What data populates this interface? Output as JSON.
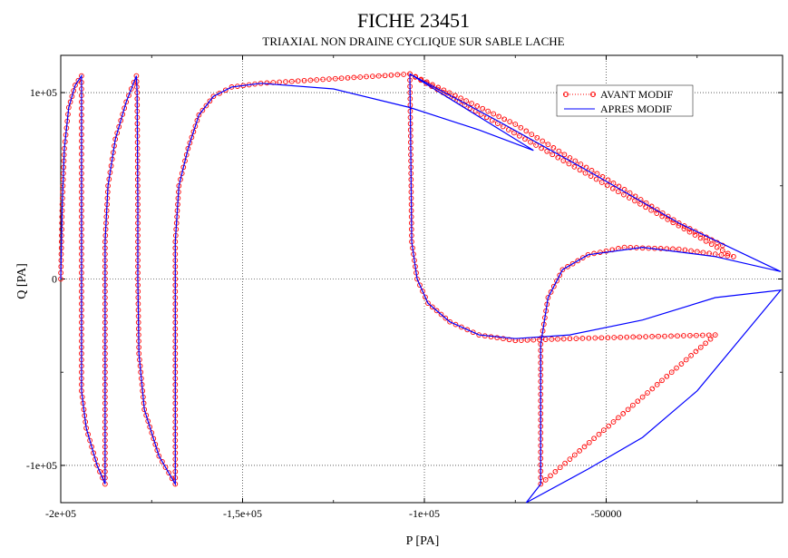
{
  "chart_data": {
    "type": "line",
    "title": "FICHE 23451",
    "subtitle": "TRIAXIAL NON DRAINE CYCLIQUE SUR SABLE LACHE",
    "xlabel": "P [PA]",
    "ylabel": "Q [PA]",
    "xlim": [
      -200000,
      -1500
    ],
    "ylim": [
      -120000,
      120000
    ],
    "x_ticks": [
      -200000,
      -150000,
      -100000,
      -50000
    ],
    "x_tick_labels": [
      "-2e+05",
      "-1,5e+05",
      "-1e+05",
      "-50000"
    ],
    "y_ticks": [
      -100000,
      0,
      100000
    ],
    "y_tick_labels": [
      "-1e+05",
      "0",
      "1e+05"
    ],
    "grid": true,
    "legend_position": "top-right",
    "series": [
      {
        "name": "AVANT MODIF",
        "color": "#ff0000",
        "style": "dotted-with-circle-markers",
        "points": [
          [
            -200000,
            0
          ],
          [
            -199600,
            40000
          ],
          [
            -199000,
            70000
          ],
          [
            -197800,
            92000
          ],
          [
            -196000,
            104000
          ],
          [
            -194300,
            109000
          ],
          [
            -194300,
            60000
          ],
          [
            -194300,
            0
          ],
          [
            -194300,
            -60000
          ],
          [
            -193000,
            -80000
          ],
          [
            -190000,
            -100000
          ],
          [
            -187800,
            -110000
          ],
          [
            -187800,
            -40000
          ],
          [
            -187800,
            20000
          ],
          [
            -187000,
            50000
          ],
          [
            -185000,
            75000
          ],
          [
            -182000,
            95000
          ],
          [
            -179200,
            109000
          ],
          [
            -179000,
            100000
          ],
          [
            -178800,
            40000
          ],
          [
            -178800,
            0
          ],
          [
            -178500,
            -40000
          ],
          [
            -177000,
            -70000
          ],
          [
            -173000,
            -95000
          ],
          [
            -168500,
            -110000
          ],
          [
            -168500,
            -40000
          ],
          [
            -168500,
            20000
          ],
          [
            -167500,
            50000
          ],
          [
            -165000,
            70000
          ],
          [
            -162000,
            88000
          ],
          [
            -158000,
            98000
          ],
          [
            -153000,
            103000
          ],
          [
            -145000,
            105000
          ],
          [
            -104000,
            110000
          ],
          [
            -103700,
            60000
          ],
          [
            -103500,
            20000
          ],
          [
            -102000,
            0
          ],
          [
            -99000,
            -13000
          ],
          [
            -93000,
            -23000
          ],
          [
            -85000,
            -30000
          ],
          [
            -75000,
            -33000
          ],
          [
            -60000,
            -32000
          ],
          [
            -20000,
            -30000
          ],
          [
            -68000,
            -110000
          ],
          [
            -68000,
            -55000
          ],
          [
            -68000,
            -35000
          ],
          [
            -66000,
            -10000
          ],
          [
            -62000,
            5000
          ],
          [
            -55000,
            13000
          ],
          [
            -45000,
            17000
          ],
          [
            -30000,
            16000
          ],
          [
            -15000,
            12000
          ],
          [
            -104000,
            110000
          ],
          [
            -90000,
            97000
          ],
          [
            -75000,
            83000
          ],
          [
            -60000,
            65000
          ],
          [
            -45000,
            48000
          ],
          [
            -30000,
            30000
          ],
          [
            -18000,
            18000
          ]
        ]
      },
      {
        "name": "APRES MODIF",
        "color": "#0000ff",
        "style": "solid",
        "points": [
          [
            -200000,
            0
          ],
          [
            -199600,
            40000
          ],
          [
            -199000,
            70000
          ],
          [
            -197800,
            92000
          ],
          [
            -196000,
            104000
          ],
          [
            -194300,
            109000
          ],
          [
            -194300,
            60000
          ],
          [
            -194300,
            0
          ],
          [
            -194300,
            -60000
          ],
          [
            -193000,
            -80000
          ],
          [
            -190000,
            -100000
          ],
          [
            -187800,
            -110000
          ],
          [
            -187800,
            -40000
          ],
          [
            -187800,
            20000
          ],
          [
            -187000,
            50000
          ],
          [
            -185000,
            75000
          ],
          [
            -182000,
            95000
          ],
          [
            -179200,
            109000
          ],
          [
            -179000,
            100000
          ],
          [
            -178800,
            40000
          ],
          [
            -178800,
            0
          ],
          [
            -178500,
            -40000
          ],
          [
            -177000,
            -70000
          ],
          [
            -173000,
            -95000
          ],
          [
            -168500,
            -110000
          ],
          [
            -168500,
            -40000
          ],
          [
            -168500,
            20000
          ],
          [
            -167500,
            50000
          ],
          [
            -165000,
            70000
          ],
          [
            -162000,
            88000
          ],
          [
            -158000,
            98000
          ],
          [
            -153000,
            103000
          ],
          [
            -145000,
            105000
          ],
          [
            -125000,
            102000
          ],
          [
            -104000,
            92000
          ],
          [
            -85000,
            80000
          ],
          [
            -70000,
            69000
          ],
          [
            -104000,
            110000
          ],
          [
            -80000,
            85000
          ],
          [
            -55000,
            58000
          ],
          [
            -30000,
            30000
          ],
          [
            -2000,
            4000
          ],
          [
            -20000,
            12000
          ],
          [
            -40000,
            17000
          ],
          [
            -55000,
            13000
          ],
          [
            -62000,
            5000
          ],
          [
            -66000,
            -10000
          ],
          [
            -68000,
            -35000
          ],
          [
            -68000,
            -55000
          ],
          [
            -68000,
            -110000
          ],
          [
            -72000,
            -120000
          ],
          [
            -55000,
            -102000
          ],
          [
            -40000,
            -85000
          ],
          [
            -25000,
            -60000
          ],
          [
            -2000,
            -6000
          ],
          [
            -20000,
            -10000
          ],
          [
            -40000,
            -22000
          ],
          [
            -60000,
            -30000
          ],
          [
            -75000,
            -32000
          ],
          [
            -85000,
            -30000
          ],
          [
            -93000,
            -23000
          ],
          [
            -99000,
            -13000
          ],
          [
            -102000,
            0
          ],
          [
            -103500,
            20000
          ],
          [
            -103700,
            60000
          ],
          [
            -104000,
            110000
          ]
        ]
      }
    ]
  }
}
